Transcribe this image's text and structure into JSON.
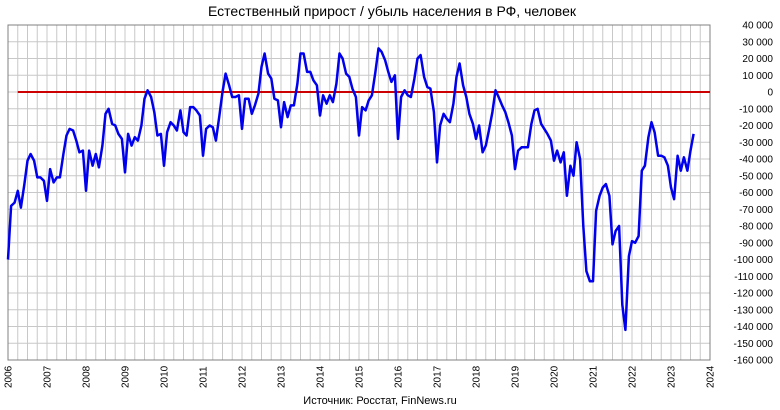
{
  "chart_data": {
    "type": "line",
    "title": "Естественный прирост / убыль населения в РФ, человек",
    "source": "Источник: Росстат, FinNews.ru",
    "xlabel": "",
    "ylabel": "",
    "x_range": [
      2006,
      2024
    ],
    "ylim": [
      -160000,
      40000
    ],
    "x_ticks": [
      "2006",
      "2007",
      "2008",
      "2009",
      "2010",
      "2011",
      "2012",
      "2013",
      "2014",
      "2015",
      "2016",
      "2017",
      "2018",
      "2019",
      "2020",
      "2021",
      "2022",
      "2023",
      "2024"
    ],
    "y_ticks": [
      "40 000",
      "30 000",
      "20 000",
      "10 000",
      "0",
      "-10 000",
      "-20 000",
      "-30 000",
      "-40 000",
      "-50 000",
      "-60 000",
      "-70 000",
      "-80 000",
      "-90 000",
      "-100 000",
      "-110 000",
      "-120 000",
      "-130 000",
      "-140 000",
      "-150 000",
      "-160 000"
    ],
    "grid": true,
    "reference_line": {
      "y": 0,
      "color": "#cc0000"
    },
    "series": [
      {
        "color": "#0000ee",
        "points": [
          [
            2006.0,
            -100000
          ],
          [
            2006.08,
            -68000
          ],
          [
            2006.17,
            -66000
          ],
          [
            2006.25,
            -59000
          ],
          [
            2006.33,
            -69000
          ],
          [
            2006.42,
            -55000
          ],
          [
            2006.5,
            -41000
          ],
          [
            2006.58,
            -37000
          ],
          [
            2006.67,
            -41000
          ],
          [
            2006.75,
            -51000
          ],
          [
            2006.83,
            -51000
          ],
          [
            2006.92,
            -53000
          ],
          [
            2007.0,
            -65000
          ],
          [
            2007.08,
            -46000
          ],
          [
            2007.17,
            -54000
          ],
          [
            2007.25,
            -51000
          ],
          [
            2007.33,
            -51000
          ],
          [
            2007.42,
            -37000
          ],
          [
            2007.5,
            -26000
          ],
          [
            2007.58,
            -22000
          ],
          [
            2007.67,
            -23000
          ],
          [
            2007.75,
            -29000
          ],
          [
            2007.83,
            -36000
          ],
          [
            2007.92,
            -35000
          ],
          [
            2008.0,
            -59000
          ],
          [
            2008.08,
            -35000
          ],
          [
            2008.17,
            -44000
          ],
          [
            2008.25,
            -37000
          ],
          [
            2008.33,
            -45000
          ],
          [
            2008.42,
            -32000
          ],
          [
            2008.5,
            -13000
          ],
          [
            2008.58,
            -10000
          ],
          [
            2008.67,
            -19000
          ],
          [
            2008.75,
            -20000
          ],
          [
            2008.83,
            -25000
          ],
          [
            2008.92,
            -28000
          ],
          [
            2009.0,
            -48000
          ],
          [
            2009.08,
            -25000
          ],
          [
            2009.17,
            -32000
          ],
          [
            2009.25,
            -27000
          ],
          [
            2009.33,
            -29000
          ],
          [
            2009.42,
            -20000
          ],
          [
            2009.5,
            -4000
          ],
          [
            2009.58,
            1000
          ],
          [
            2009.67,
            -3000
          ],
          [
            2009.75,
            -12000
          ],
          [
            2009.83,
            -26000
          ],
          [
            2009.92,
            -25000
          ],
          [
            2010.0,
            -44000
          ],
          [
            2010.08,
            -24000
          ],
          [
            2010.17,
            -18000
          ],
          [
            2010.25,
            -20000
          ],
          [
            2010.33,
            -23000
          ],
          [
            2010.42,
            -11000
          ],
          [
            2010.5,
            -24000
          ],
          [
            2010.58,
            -26000
          ],
          [
            2010.67,
            -9000
          ],
          [
            2010.75,
            -9000
          ],
          [
            2010.83,
            -11000
          ],
          [
            2010.92,
            -14000
          ],
          [
            2011.0,
            -38000
          ],
          [
            2011.08,
            -22000
          ],
          [
            2011.17,
            -20000
          ],
          [
            2011.25,
            -21000
          ],
          [
            2011.33,
            -29000
          ],
          [
            2011.42,
            -14000
          ],
          [
            2011.5,
            0
          ],
          [
            2011.58,
            11000
          ],
          [
            2011.67,
            4000
          ],
          [
            2011.75,
            -3000
          ],
          [
            2011.83,
            -3000
          ],
          [
            2011.92,
            -2000
          ],
          [
            2012.0,
            -22000
          ],
          [
            2012.08,
            -4000
          ],
          [
            2012.17,
            -4000
          ],
          [
            2012.25,
            -13000
          ],
          [
            2012.33,
            -8000
          ],
          [
            2012.42,
            -1000
          ],
          [
            2012.5,
            15000
          ],
          [
            2012.58,
            23000
          ],
          [
            2012.67,
            11000
          ],
          [
            2012.75,
            8000
          ],
          [
            2012.83,
            -4000
          ],
          [
            2012.92,
            -5000
          ],
          [
            2013.0,
            -21000
          ],
          [
            2013.08,
            -6000
          ],
          [
            2013.17,
            -15000
          ],
          [
            2013.25,
            -8000
          ],
          [
            2013.33,
            -8000
          ],
          [
            2013.42,
            5000
          ],
          [
            2013.5,
            23000
          ],
          [
            2013.58,
            23000
          ],
          [
            2013.67,
            12000
          ],
          [
            2013.75,
            12000
          ],
          [
            2013.83,
            7000
          ],
          [
            2013.92,
            4000
          ],
          [
            2014.0,
            -14000
          ],
          [
            2014.08,
            -2000
          ],
          [
            2014.17,
            -7000
          ],
          [
            2014.25,
            -2000
          ],
          [
            2014.33,
            -6000
          ],
          [
            2014.42,
            5000
          ],
          [
            2014.5,
            23000
          ],
          [
            2014.58,
            20000
          ],
          [
            2014.67,
            11000
          ],
          [
            2014.75,
            9000
          ],
          [
            2014.83,
            2000
          ],
          [
            2014.92,
            -3000
          ],
          [
            2015.0,
            -26000
          ],
          [
            2015.08,
            -9000
          ],
          [
            2015.17,
            -11000
          ],
          [
            2015.25,
            -5000
          ],
          [
            2015.33,
            -2000
          ],
          [
            2015.42,
            12000
          ],
          [
            2015.5,
            26000
          ],
          [
            2015.58,
            24000
          ],
          [
            2015.67,
            19000
          ],
          [
            2015.75,
            12000
          ],
          [
            2015.83,
            6000
          ],
          [
            2015.92,
            10000
          ],
          [
            2016.0,
            -28000
          ],
          [
            2016.08,
            -3000
          ],
          [
            2016.17,
            1000
          ],
          [
            2016.25,
            -2000
          ],
          [
            2016.33,
            -3000
          ],
          [
            2016.42,
            8000
          ],
          [
            2016.5,
            20000
          ],
          [
            2016.58,
            22000
          ],
          [
            2016.67,
            9000
          ],
          [
            2016.75,
            3000
          ],
          [
            2016.83,
            2000
          ],
          [
            2016.92,
            -12000
          ],
          [
            2017.0,
            -42000
          ],
          [
            2017.08,
            -20000
          ],
          [
            2017.17,
            -13000
          ],
          [
            2017.25,
            -16000
          ],
          [
            2017.33,
            -18000
          ],
          [
            2017.42,
            -7000
          ],
          [
            2017.5,
            9000
          ],
          [
            2017.58,
            17000
          ],
          [
            2017.67,
            4000
          ],
          [
            2017.75,
            -3000
          ],
          [
            2017.83,
            -13000
          ],
          [
            2017.92,
            -19000
          ],
          [
            2018.0,
            -28000
          ],
          [
            2018.08,
            -20000
          ],
          [
            2018.17,
            -36000
          ],
          [
            2018.25,
            -32000
          ],
          [
            2018.33,
            -23000
          ],
          [
            2018.42,
            -12000
          ],
          [
            2018.5,
            1000
          ],
          [
            2018.58,
            -3000
          ],
          [
            2018.67,
            -8000
          ],
          [
            2018.75,
            -12000
          ],
          [
            2018.83,
            -18000
          ],
          [
            2018.92,
            -26000
          ],
          [
            2019.0,
            -46000
          ],
          [
            2019.08,
            -35000
          ],
          [
            2019.17,
            -33000
          ],
          [
            2019.25,
            -33000
          ],
          [
            2019.33,
            -33000
          ],
          [
            2019.42,
            -19000
          ],
          [
            2019.5,
            -11000
          ],
          [
            2019.58,
            -10000
          ],
          [
            2019.67,
            -19000
          ],
          [
            2019.75,
            -22000
          ],
          [
            2019.83,
            -25000
          ],
          [
            2019.92,
            -29000
          ],
          [
            2020.0,
            -41000
          ],
          [
            2020.08,
            -35000
          ],
          [
            2020.17,
            -42000
          ],
          [
            2020.25,
            -36000
          ],
          [
            2020.33,
            -62000
          ],
          [
            2020.42,
            -44000
          ],
          [
            2020.5,
            -50000
          ],
          [
            2020.58,
            -30000
          ],
          [
            2020.67,
            -40000
          ],
          [
            2020.75,
            -80000
          ],
          [
            2020.83,
            -107000
          ],
          [
            2020.92,
            -113000
          ],
          [
            2021.0,
            -113000
          ],
          [
            2021.08,
            -71000
          ],
          [
            2021.17,
            -62000
          ],
          [
            2021.25,
            -57000
          ],
          [
            2021.33,
            -55000
          ],
          [
            2021.42,
            -62000
          ],
          [
            2021.5,
            -91000
          ],
          [
            2021.58,
            -83000
          ],
          [
            2021.67,
            -80000
          ],
          [
            2021.75,
            -127000
          ],
          [
            2021.83,
            -142000
          ],
          [
            2021.92,
            -98000
          ],
          [
            2022.0,
            -89000
          ],
          [
            2022.08,
            -90000
          ],
          [
            2022.17,
            -86000
          ],
          [
            2022.25,
            -47000
          ],
          [
            2022.33,
            -44000
          ],
          [
            2022.42,
            -27000
          ],
          [
            2022.5,
            -18000
          ],
          [
            2022.58,
            -24000
          ],
          [
            2022.67,
            -38000
          ],
          [
            2022.75,
            -38000
          ],
          [
            2022.83,
            -39000
          ],
          [
            2022.92,
            -44000
          ],
          [
            2023.0,
            -57000
          ],
          [
            2023.08,
            -64000
          ],
          [
            2023.17,
            -38000
          ],
          [
            2023.25,
            -47000
          ],
          [
            2023.33,
            -39000
          ],
          [
            2023.42,
            -47000
          ],
          [
            2023.5,
            -35000
          ],
          [
            2023.58,
            -25000
          ]
        ]
      }
    ]
  }
}
